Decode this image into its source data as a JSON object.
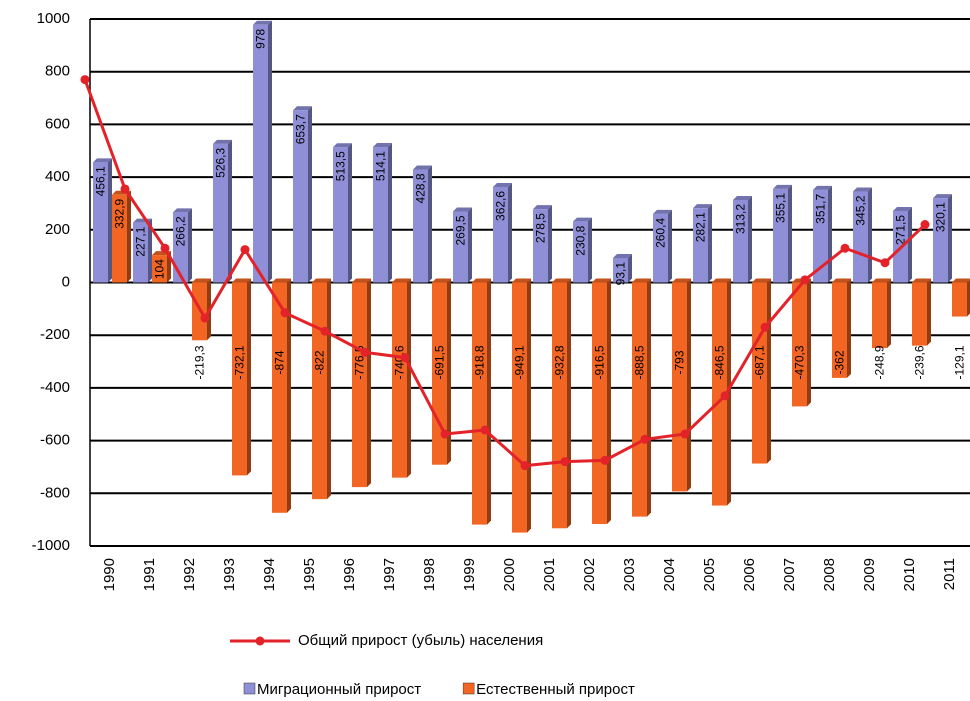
{
  "chart_data": {
    "type": "bar",
    "categories": [
      "1990",
      "1991",
      "1992",
      "1993",
      "1994",
      "1995",
      "1996",
      "1997",
      "1998",
      "1999",
      "2000",
      "2001",
      "2002",
      "2003",
      "2004",
      "2005",
      "2006",
      "2007",
      "2008",
      "2009",
      "2010",
      "2011"
    ],
    "series": [
      {
        "name": "Миграционный прирост",
        "color": "#8f8fd8",
        "values": [
          456.1,
          227.1,
          266.2,
          526.3,
          978,
          653.7,
          513.5,
          514.1,
          428.8,
          269.5,
          362.6,
          278.5,
          230.8,
          93.1,
          260.4,
          282.1,
          313.2,
          355.1,
          351.7,
          345.2,
          271.5,
          320.1
        ],
        "value_labels": [
          "456,1",
          "227,1",
          "266,2",
          "526,3",
          "978",
          "653,7",
          "513,5",
          "514,1",
          "428,8",
          "269,5",
          "362,6",
          "278,5",
          "230,8",
          "93,1",
          "260,4",
          "282,1",
          "313,2",
          "355,1",
          "351,7",
          "345,2",
          "271,5",
          "320,1"
        ]
      },
      {
        "name": "Естественный прирост",
        "color": "#f26522",
        "values": [
          332.9,
          104,
          -219.3,
          -732.1,
          -874,
          -822,
          -776.5,
          -740.6,
          -691.5,
          -918.8,
          -949.1,
          -932.8,
          -916.5,
          -888.5,
          -793,
          -846.5,
          -687.1,
          -470.3,
          -362,
          -248.9,
          -239.6,
          -129.1
        ],
        "value_labels": [
          "332,9",
          "104",
          "-219,3",
          "-732,1",
          "-874",
          "-822",
          "-776,5",
          "-740,6",
          "-691,5",
          "-918,8",
          "-949,1",
          "-932,8",
          "-916,5",
          "-888,5",
          "-793",
          "-846,5",
          "-687,1",
          "-470,3",
          "-362",
          "-248,9",
          "-239,6",
          "-129,1"
        ]
      },
      {
        "name": "Общий прирост (убыль) населения",
        "color": "#e3222a",
        "type": "line",
        "values": [
          770,
          355,
          130,
          -135,
          125,
          -115,
          -185,
          -265,
          -285,
          -575,
          -560,
          -695,
          -680,
          -675,
          -595,
          -575,
          -430,
          -170,
          10,
          130,
          75,
          220
        ]
      }
    ],
    "ylim": [
      -1000,
      1000
    ],
    "yticks": [
      -1000,
      -800,
      -600,
      -400,
      -200,
      0,
      200,
      400,
      600,
      800,
      1000
    ],
    "grid": true
  }
}
